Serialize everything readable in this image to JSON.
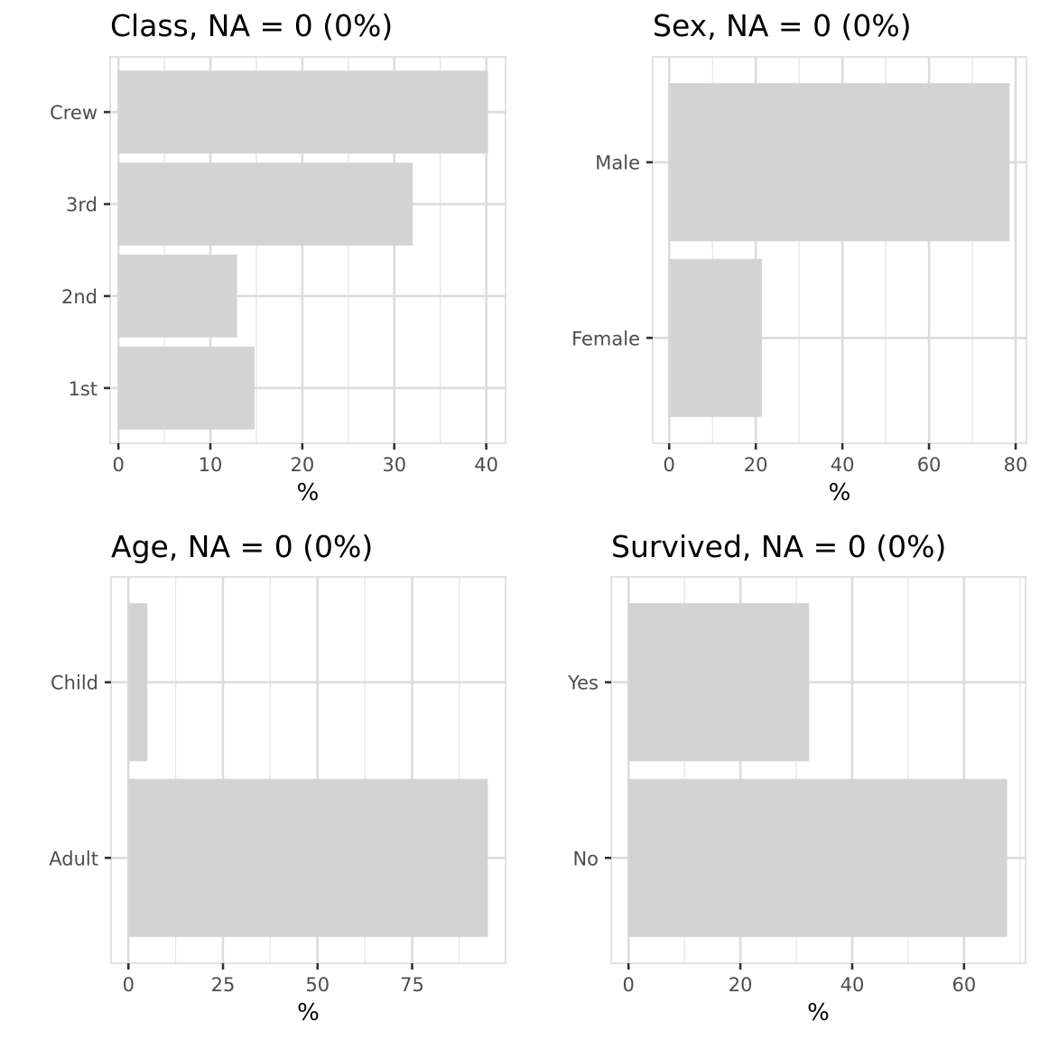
{
  "chart_data": [
    {
      "type": "bar",
      "orientation": "horizontal",
      "title": "Class, NA = 0 (0%)",
      "xlabel": "%",
      "ylabel": "",
      "categories": [
        "1st",
        "2nd",
        "3rd",
        "Crew"
      ],
      "values": [
        14.8,
        12.9,
        32.0,
        40.2
      ],
      "xlim": [
        -0.9,
        42.1
      ],
      "xticks": [
        0,
        10,
        20,
        30,
        40
      ],
      "bar_color": "#d3d3d3",
      "grid": true,
      "legend": "none"
    },
    {
      "type": "bar",
      "orientation": "horizontal",
      "title": "Sex, NA = 0 (0%)",
      "xlabel": "%",
      "ylabel": "",
      "categories": [
        "Female",
        "Male"
      ],
      "values": [
        21.4,
        78.6
      ],
      "xlim": [
        -3.8,
        82.5
      ],
      "xticks": [
        0,
        20,
        40,
        60,
        80
      ],
      "bar_color": "#d3d3d3",
      "grid": true,
      "legend": "none"
    },
    {
      "type": "bar",
      "orientation": "horizontal",
      "title": "Age, NA = 0 (0%)",
      "xlabel": "%",
      "ylabel": "",
      "categories": [
        "Adult",
        "Child"
      ],
      "values": [
        95.0,
        5.0
      ],
      "xlim": [
        -4.6,
        99.7
      ],
      "xticks": [
        0,
        25,
        50,
        75
      ],
      "bar_color": "#d3d3d3",
      "grid": true,
      "legend": "none"
    },
    {
      "type": "bar",
      "orientation": "horizontal",
      "title": "Survived, NA = 0 (0%)",
      "xlabel": "%",
      "ylabel": "",
      "categories": [
        "No",
        "Yes"
      ],
      "values": [
        67.7,
        32.3
      ],
      "xlim": [
        -3.1,
        71.0
      ],
      "xticks": [
        0,
        20,
        40,
        60
      ],
      "bar_color": "#d3d3d3",
      "grid": true,
      "legend": "none"
    }
  ]
}
